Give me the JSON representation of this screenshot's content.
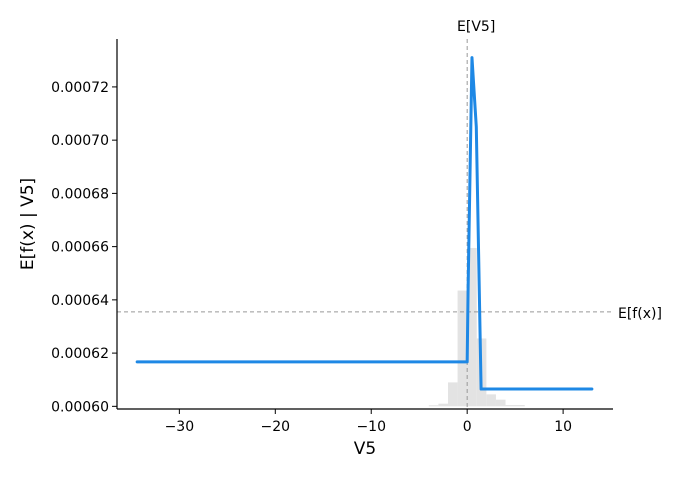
{
  "chart_data": {
    "type": "line",
    "title": "",
    "xlabel": "V5",
    "ylabel": "E[f(x) | V5]",
    "xlim": [
      -36.5,
      15.2
    ],
    "ylim": [
      0.000599,
      0.000738
    ],
    "x_ticks": [
      {
        "value": -30,
        "label": "−30"
      },
      {
        "value": -20,
        "label": "−20"
      },
      {
        "value": -10,
        "label": "−10"
      },
      {
        "value": 0,
        "label": "0"
      },
      {
        "value": 10,
        "label": "10"
      }
    ],
    "y_ticks": [
      {
        "value": 0.0006,
        "label": "0.00060"
      },
      {
        "value": 0.00062,
        "label": "0.00062"
      },
      {
        "value": 0.00064,
        "label": "0.00064"
      },
      {
        "value": 0.00066,
        "label": "0.00066"
      },
      {
        "value": 0.00068,
        "label": "0.00068"
      },
      {
        "value": 0.0007,
        "label": "0.00070"
      },
      {
        "value": 0.00072,
        "label": "0.00072"
      }
    ],
    "series": [
      {
        "color": "#1e88e5",
        "points": [
          [
            -34.4,
            0.0006167
          ],
          [
            0.0,
            0.0006167
          ],
          [
            0.1,
            0.000645
          ],
          [
            0.5,
            0.000731
          ],
          [
            0.95,
            0.000705
          ],
          [
            1.45,
            0.0006065
          ],
          [
            13.0,
            0.0006065
          ]
        ]
      }
    ],
    "histogram": {
      "color": "#e3e3e3",
      "bins": [
        {
          "x0": -4.0,
          "x1": -3.0,
          "height": 4e-07
        },
        {
          "x0": -3.0,
          "x1": -2.0,
          "height": 1e-06
        },
        {
          "x0": -2.0,
          "x1": -1.0,
          "height": 9e-06
        },
        {
          "x0": -1.0,
          "x1": 0.0,
          "height": 4.35e-05
        },
        {
          "x0": 0.0,
          "x1": 1.0,
          "height": 5.95e-05
        },
        {
          "x0": 1.0,
          "x1": 2.0,
          "height": 2.55e-05
        },
        {
          "x0": 2.0,
          "x1": 3.0,
          "height": 4.5e-06
        },
        {
          "x0": 3.0,
          "x1": 4.0,
          "height": 2.5e-06
        },
        {
          "x0": 4.0,
          "x1": 6.0,
          "height": 5e-07
        }
      ]
    },
    "ref_lines": {
      "color": "#999999",
      "expected_x": {
        "value": 0.0,
        "label": "E[V5]"
      },
      "expected_y": {
        "value": 0.0006355,
        "label": "E[f(x)]"
      }
    },
    "grid": false,
    "legend": "none"
  }
}
